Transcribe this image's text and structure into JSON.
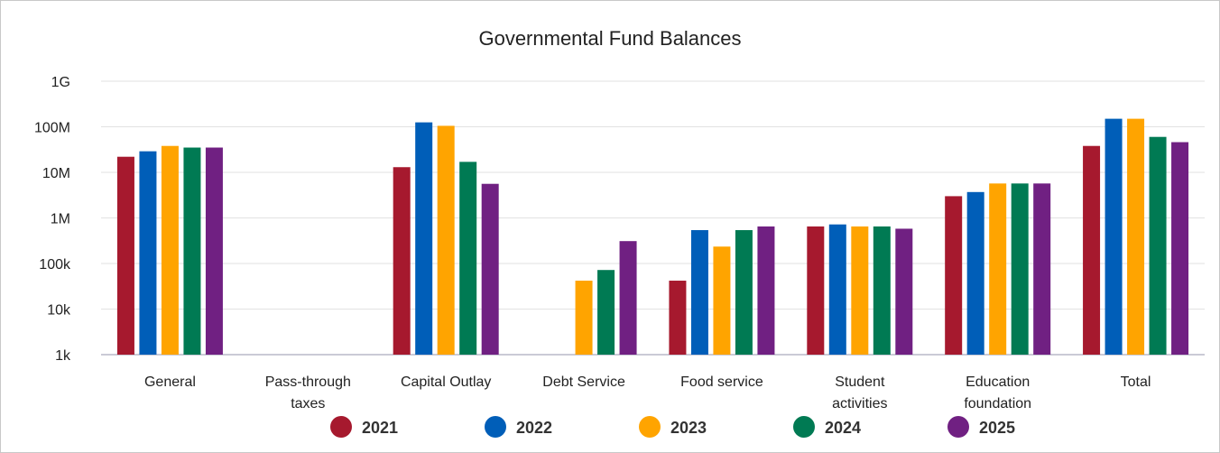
{
  "chart_data": {
    "type": "bar",
    "title": "Governmental Fund Balances",
    "xlabel": "",
    "ylabel": "",
    "yscale": "log",
    "ylim": [
      1000,
      1000000000
    ],
    "yticks": [
      {
        "value": 1000,
        "label": "1k"
      },
      {
        "value": 10000,
        "label": "10k"
      },
      {
        "value": 100000,
        "label": "100k"
      },
      {
        "value": 1000000,
        "label": "1M"
      },
      {
        "value": 10000000,
        "label": "10M"
      },
      {
        "value": 100000000,
        "label": "100M"
      },
      {
        "value": 1000000000,
        "label": "1G"
      }
    ],
    "grid": true,
    "legend_position": "bottom",
    "categories": [
      [
        "General"
      ],
      [
        "Pass-through",
        "taxes"
      ],
      [
        "Capital Outlay"
      ],
      [
        "Debt Service"
      ],
      [
        "Food service"
      ],
      [
        "Student",
        "activities"
      ],
      [
        "Education",
        "foundation"
      ],
      [
        "Total"
      ]
    ],
    "series": [
      {
        "name": "2021",
        "color": "#A6192E",
        "values": [
          22000000,
          null,
          13000000,
          null,
          42000,
          650000,
          3000000,
          38000000
        ]
      },
      {
        "name": "2022",
        "color": "#005EB8",
        "values": [
          29000000,
          null,
          125000000,
          null,
          540000,
          720000,
          3700000,
          150000000
        ]
      },
      {
        "name": "2023",
        "color": "#FFA400",
        "values": [
          38000000,
          null,
          105000000,
          42000,
          235000,
          650000,
          5700000,
          150000000
        ]
      },
      {
        "name": "2024",
        "color": "#007A53",
        "values": [
          35000000,
          null,
          17000000,
          72000,
          540000,
          650000,
          5700000,
          60000000
        ]
      },
      {
        "name": "2025",
        "color": "#702082",
        "values": [
          35000000,
          null,
          5600000,
          310000,
          650000,
          580000,
          5700000,
          46000000
        ]
      }
    ]
  }
}
